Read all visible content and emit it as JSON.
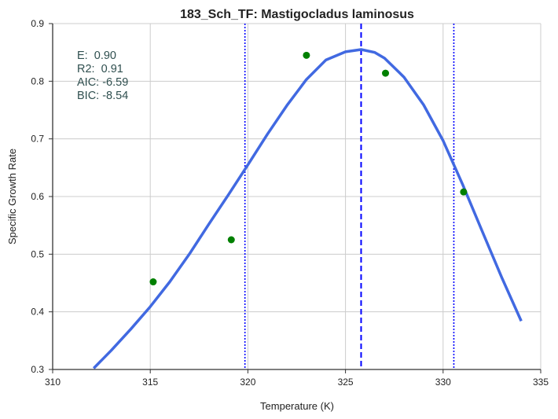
{
  "chart_data": {
    "type": "scatter",
    "title": "183_Sch_TF: Mastigocladus laminosus",
    "xlabel": "Temperature (K)",
    "ylabel": "Specific Growth Rate",
    "xlim": [
      310,
      335
    ],
    "ylim": [
      0.3,
      0.9
    ],
    "xticks": [
      "310",
      "315",
      "320",
      "325",
      "330",
      "335"
    ],
    "yticks": [
      "0.3",
      "0.4",
      "0.5",
      "0.6",
      "0.7",
      "0.8",
      "0.9"
    ],
    "grid": true,
    "points": {
      "x": [
        315.15,
        319.15,
        323.0,
        327.05,
        331.05
      ],
      "y": [
        0.452,
        0.525,
        0.845,
        0.814,
        0.608
      ],
      "color": "#008000"
    },
    "fit_curve": {
      "color": "#4169e1",
      "x": [
        312.1,
        313,
        314,
        315,
        316,
        317,
        318,
        319,
        320,
        321,
        322,
        323,
        324,
        325,
        325.8,
        326.5,
        327,
        328,
        329,
        330,
        331,
        332,
        333,
        334
      ],
      "y": [
        0.302,
        0.333,
        0.37,
        0.409,
        0.452,
        0.5,
        0.552,
        0.603,
        0.655,
        0.708,
        0.758,
        0.803,
        0.837,
        0.851,
        0.855,
        0.85,
        0.84,
        0.807,
        0.759,
        0.697,
        0.621,
        0.54,
        0.46,
        0.384
      ]
    },
    "vlines": [
      {
        "x": 319.85,
        "style": "dotted",
        "color": "#0000ff"
      },
      {
        "x": 325.8,
        "style": "dashed",
        "color": "#0000ff"
      },
      {
        "x": 330.55,
        "style": "dotted",
        "color": "#0000ff"
      }
    ],
    "stats": [
      {
        "text": "E:  0.90"
      },
      {
        "text": "R2:  0.91"
      },
      {
        "text": "AIC: -6.59"
      },
      {
        "text": "BIC: -8.54"
      }
    ]
  }
}
